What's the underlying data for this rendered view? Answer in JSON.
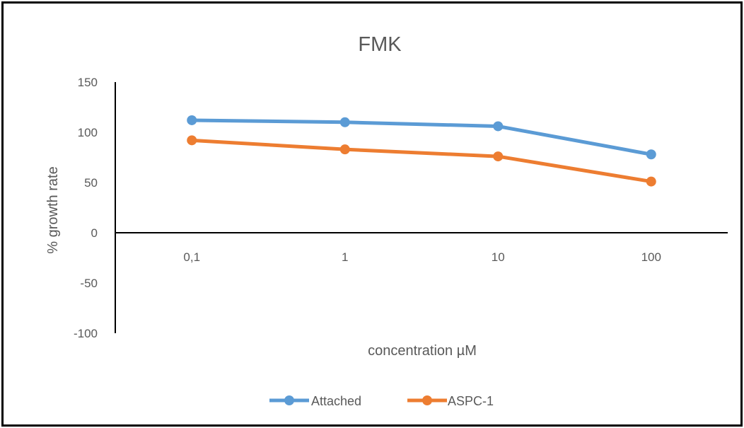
{
  "chart_data": {
    "type": "line",
    "title": "FMK",
    "xlabel": "concentration µM",
    "ylabel": "% growth rate",
    "categories": [
      "0,1",
      "1",
      "10",
      "100"
    ],
    "ylim": [
      -100,
      150
    ],
    "yticks": [
      150,
      100,
      50,
      0,
      -50,
      -100
    ],
    "grid": false,
    "legend_position": "bottom",
    "series": [
      {
        "name": "Attached",
        "color": "#5B9BD5",
        "values": [
          112,
          110,
          106,
          78
        ]
      },
      {
        "name": "ASPC-1",
        "color": "#ED7D31",
        "values": [
          92,
          83,
          76,
          51
        ]
      }
    ]
  }
}
